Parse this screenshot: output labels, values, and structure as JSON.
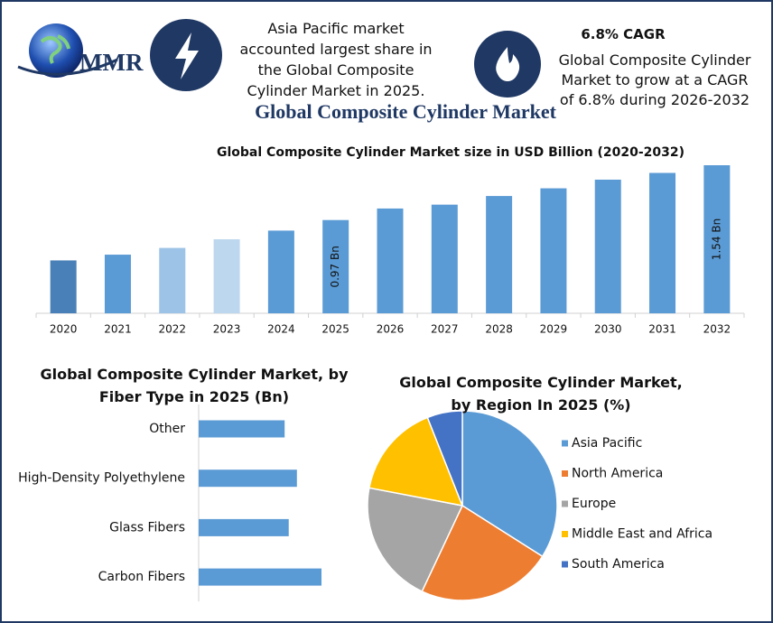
{
  "header": {
    "logo": "MMR",
    "insight_1": "Asia Pacific market accounted largest share in the Global Composite Cylinder Market in 2025.",
    "cagr_title": "6.8% CAGR",
    "insight_2": "Global Composite Cylinder Market to grow at a CAGR of 6.8% during 2026-2032",
    "title": "Global Composite Cylinder Market"
  },
  "chart_data": [
    {
      "type": "bar",
      "title": "Global Composite Cylinder Market size in USD Billion (2020-2032)",
      "categories": [
        "2020",
        "2021",
        "2022",
        "2023",
        "2024",
        "2025",
        "2026",
        "2027",
        "2028",
        "2029",
        "2030",
        "2031",
        "2032"
      ],
      "values": [
        0.55,
        0.61,
        0.68,
        0.77,
        0.86,
        0.97,
        1.09,
        1.13,
        1.22,
        1.3,
        1.39,
        1.46,
        1.54
      ],
      "value_labels": [
        null,
        null,
        null,
        null,
        null,
        "0.97 Bn",
        null,
        null,
        null,
        null,
        null,
        null,
        "1.54 Bn"
      ],
      "colors": [
        "#4a80b8",
        "#5b9bd5",
        "#9dc3e6",
        "#bdd7ee",
        "#5b9bd5",
        "#5b9bd5",
        "#5b9bd5",
        "#5b9bd5",
        "#5b9bd5",
        "#5b9bd5",
        "#5b9bd5",
        "#5b9bd5",
        "#5b9bd5"
      ]
    },
    {
      "type": "hbar",
      "title": "Global Composite Cylinder Market, by Fiber Type in 2025 (Bn)",
      "categories": [
        "Other",
        "High-Density Polyethylene",
        "Glass Fibers",
        "Carbon Fibers"
      ],
      "values": [
        0.21,
        0.24,
        0.22,
        0.3
      ],
      "color": "#5b9bd5"
    },
    {
      "type": "pie",
      "title": "Global Composite Cylinder Market, by Region In 2025 (%)",
      "categories": [
        "Asia Pacific",
        "North America",
        "Europe",
        "Middle East and Africa",
        "South America"
      ],
      "values": [
        34,
        23,
        21,
        16,
        6
      ],
      "colors": [
        "#5b9bd5",
        "#ed7d31",
        "#a5a5a5",
        "#ffc000",
        "#4472c4"
      ],
      "legend": "right"
    }
  ]
}
